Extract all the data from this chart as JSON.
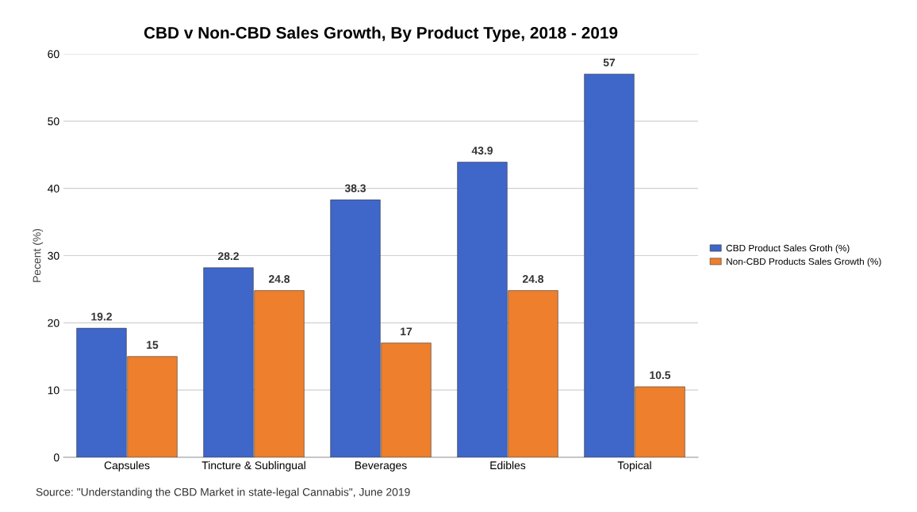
{
  "chart_data": {
    "type": "bar",
    "title": "CBD v Non-CBD Sales Growth, By Product Type, 2018 - 2019",
    "ylabel": "Pecent (%)",
    "categories": [
      "Capsules",
      "Tincture & Sublingual",
      "Beverages",
      "Edibles",
      "Topical"
    ],
    "series": [
      {
        "name": "CBD Product Sales Groth (%)",
        "color": "#3f66c9",
        "values": [
          19.2,
          28.2,
          38.3,
          43.9,
          57
        ]
      },
      {
        "name": "Non-CBD Products Sales Growth (%)",
        "color": "#ee7f2d",
        "values": [
          15,
          24.8,
          17,
          24.8,
          10.5
        ]
      }
    ],
    "ylim": [
      0,
      60
    ],
    "yticks": [
      0,
      10,
      20,
      30,
      40,
      50,
      60
    ],
    "grid": "y",
    "legend": "right",
    "data_labels": true,
    "annotations": [
      "Source: \"Understanding the CBD Market in state-legal Cannabis\", June 2019"
    ]
  }
}
